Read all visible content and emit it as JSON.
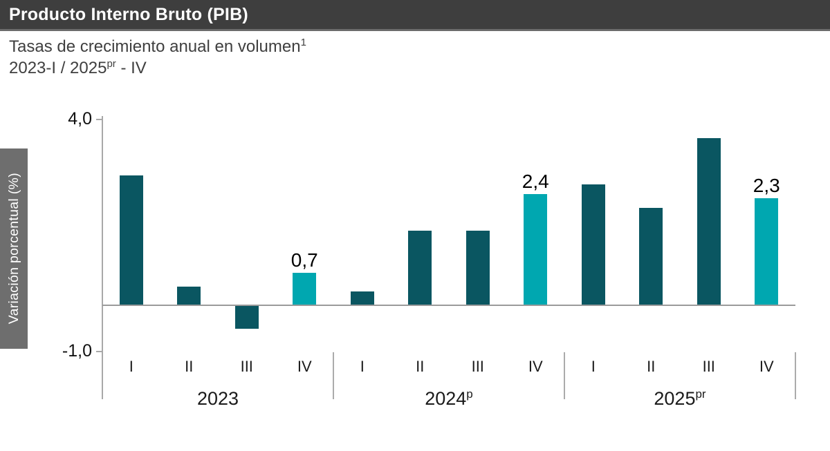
{
  "colors": {
    "header_bg": "#3E3E3E",
    "header_border": "#6B6B6B",
    "sidebar_bg": "#6E6E6E",
    "bar_dark": "#0A5661",
    "bar_highlight": "#00A7B0",
    "axis_line": "#A8A8A8",
    "subtitle_text": "#3F3F3F"
  },
  "header": {
    "title": "Producto Interno Bruto (PIB)"
  },
  "subtitle": {
    "line1_text": "Tasas de crecimiento anual en volumen",
    "line1_sup": "1",
    "line2_pre": "2023-I / 2025",
    "line2_sup": "pr",
    "line2_post": " - IV"
  },
  "chart_data": {
    "type": "bar",
    "title": "Producto Interno Bruto (PIB)",
    "subtitle": "Tasas de crecimiento anual en volumen¹",
    "period": "2023-I / 2025pr - IV",
    "ylabel": "Variación porcentual (%)",
    "ylim": [
      -1.0,
      4.0
    ],
    "grid": false,
    "yticks": [
      {
        "value": 4.0,
        "label": "4,0"
      },
      {
        "value": -1.0,
        "label": "-1,0"
      }
    ],
    "highlighted_quarter_index": 3,
    "x_groups": [
      {
        "year": "2023",
        "year_sup": "",
        "quarters": [
          "I",
          "II",
          "III",
          "IV"
        ],
        "values": [
          2.8,
          0.4,
          -0.5,
          0.7
        ],
        "value_labels": [
          "",
          "",
          "",
          "0,7"
        ]
      },
      {
        "year": "2024",
        "year_sup": "p",
        "quarters": [
          "I",
          "II",
          "III",
          "IV"
        ],
        "values": [
          0.3,
          1.6,
          1.6,
          2.4
        ],
        "value_labels": [
          "",
          "",
          "",
          "2,4"
        ]
      },
      {
        "year": "2025",
        "year_sup": "pr",
        "quarters": [
          "I",
          "II",
          "III",
          "IV"
        ],
        "values": [
          2.6,
          2.1,
          3.6,
          2.3
        ],
        "value_labels": [
          "",
          "",
          "",
          "2,3"
        ]
      }
    ]
  }
}
